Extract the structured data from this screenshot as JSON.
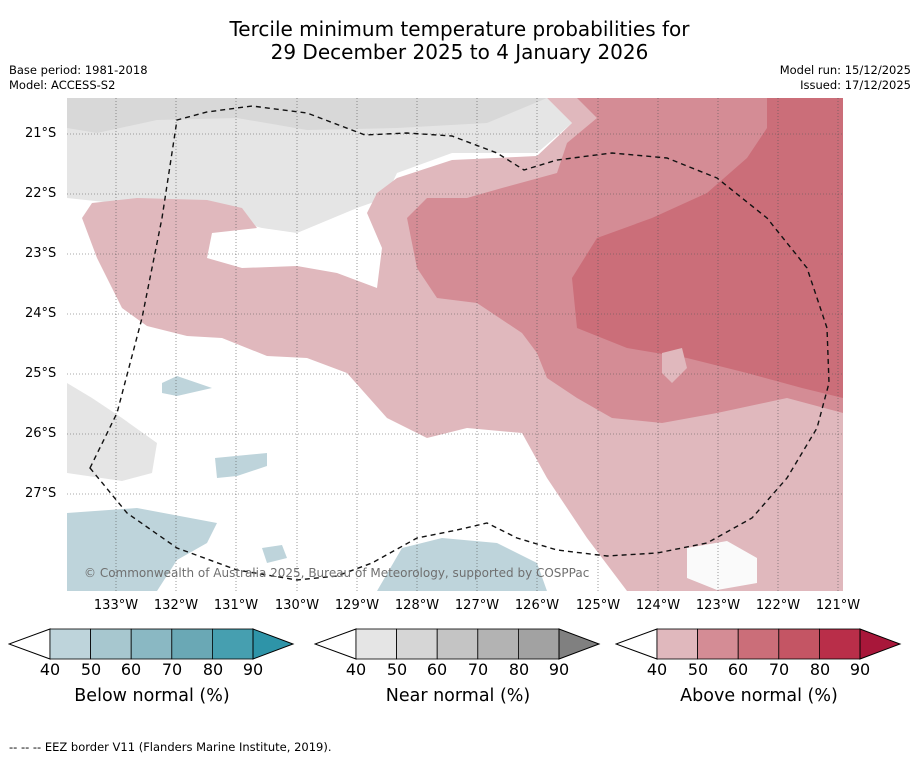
{
  "title": {
    "line1": "Tercile minimum temperature probabilities for",
    "line2": "29 December 2025 to 4 January 2026"
  },
  "meta": {
    "base_period": "Base period: 1981-2018",
    "model": "Model: ACCESS-S2",
    "model_run": "Model run: 15/12/2025",
    "issued": "Issued: 17/12/2025"
  },
  "map": {
    "region_extent": {
      "lon_west": -133.8,
      "lon_east": -120.9,
      "lat_north": -20.6,
      "lat_south": -28.8
    },
    "lat_labels": [
      "21°S",
      "22°S",
      "23°S",
      "24°S",
      "25°S",
      "26°S",
      "27°S"
    ],
    "lon_labels": [
      "133°W",
      "132°W",
      "131°W",
      "130°W",
      "129°W",
      "128°W",
      "127°W",
      "126°W",
      "125°W",
      "124°W",
      "123°W",
      "122°W",
      "121°W"
    ],
    "copyright": "© Commonwealth of Australia 2025, Bureau of Meteorology, supported by COSPPac"
  },
  "colorbars": [
    {
      "label": "Below normal (%)",
      "ticks": [
        "40",
        "50",
        "60",
        "70",
        "80",
        "90"
      ],
      "colors": [
        "#ffffff",
        "#bed4db",
        "#a7c7cf",
        "#8ab8c3",
        "#6aa8b5",
        "#469fb0",
        "#2e94a8"
      ]
    },
    {
      "label": "Near normal (%)",
      "ticks": [
        "40",
        "50",
        "60",
        "70",
        "80",
        "90"
      ],
      "colors": [
        "#ffffff",
        "#e5e5e5",
        "#d6d6d6",
        "#c4c4c4",
        "#b3b3b3",
        "#a2a2a2",
        "#808080"
      ]
    },
    {
      "label": "Above normal (%)",
      "ticks": [
        "40",
        "50",
        "60",
        "70",
        "80",
        "90"
      ],
      "colors": [
        "#ffffff",
        "#e0b8bd",
        "#d48c95",
        "#cb6e79",
        "#c45564",
        "#b92e49",
        "#a8173a"
      ]
    }
  ],
  "legend_note": "--  --  -- EEZ border V11 (Flanders Marine Institute, 2019)."
}
